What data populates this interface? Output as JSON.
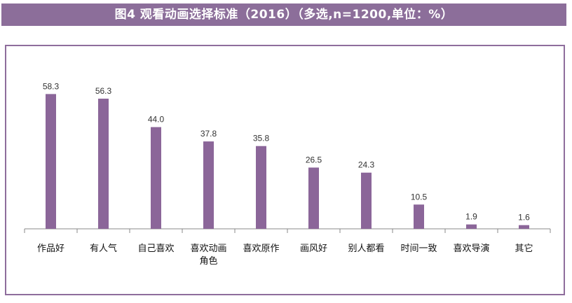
{
  "title": "图4 观看动画选择标准（2016）（多选,n=1200,单位：%）",
  "colors": {
    "title_bg": "#8c6e9a",
    "frame": "#8e6d9c",
    "bar": "#8b6699",
    "axis": "#888888"
  },
  "chart_data": {
    "type": "bar",
    "categories": [
      [
        "作品好"
      ],
      [
        "有人气"
      ],
      [
        "自己喜欢"
      ],
      [
        "喜欢动画",
        "角色"
      ],
      [
        "喜欢原作"
      ],
      [
        "画风好"
      ],
      [
        "别人都看"
      ],
      [
        "时间一致"
      ],
      [
        "喜欢导演"
      ],
      [
        "其它"
      ]
    ],
    "values": [
      58.3,
      56.3,
      44.0,
      37.8,
      35.8,
      26.5,
      24.3,
      10.5,
      1.9,
      1.6
    ],
    "value_labels": [
      "58.3",
      "56.3",
      "44.0",
      "37.8",
      "35.8",
      "26.5",
      "24.3",
      "10.5",
      "1.9",
      "1.6"
    ],
    "ylim": [
      0,
      60
    ],
    "grid": false,
    "legend": "none"
  }
}
